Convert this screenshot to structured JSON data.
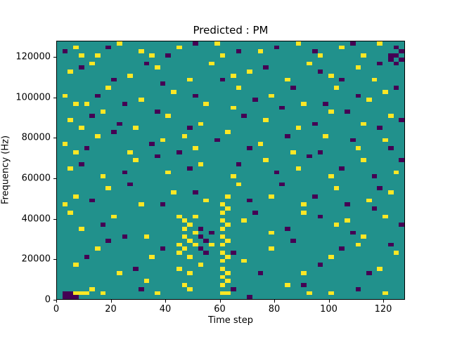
{
  "figure": {
    "background": "#ffffff"
  },
  "chart_data": {
    "type": "heatmap",
    "title": "Predicted : PM",
    "xlabel": "Time step",
    "ylabel": "Frequency (Hz)",
    "xlim": [
      0,
      128
    ],
    "ylim_hz": [
      0,
      128000
    ],
    "x_ticks": [
      0,
      20,
      40,
      60,
      80,
      100,
      120
    ],
    "y_ticks": [
      0,
      20000,
      40000,
      60000,
      80000,
      100000,
      120000
    ],
    "grid": false,
    "legend": "none",
    "colors": {
      "background_value": "#21918c",
      "high_value": "#fde725",
      "low_value": "#440154"
    },
    "cell_size": {
      "x_steps": 2,
      "y_khz": 2
    },
    "note": "Sparse ternary heatmap: teal = mid value everywhere except listed cells. Cells given as [time_step, frequency_kHz] of lower-left corner, estimated from pixels.",
    "yellow_cells": [
      [
        60,
        6
      ],
      [
        60,
        10
      ],
      [
        60,
        14
      ],
      [
        60,
        18
      ],
      [
        60,
        22
      ],
      [
        60,
        26
      ],
      [
        60,
        30
      ],
      [
        60,
        34
      ],
      [
        60,
        38
      ],
      [
        60,
        42
      ],
      [
        62,
        2
      ],
      [
        62,
        12
      ],
      [
        62,
        20
      ],
      [
        62,
        28
      ],
      [
        62,
        36
      ],
      [
        62,
        44
      ],
      [
        44,
        22
      ],
      [
        44,
        26
      ],
      [
        44,
        40
      ],
      [
        46,
        24
      ],
      [
        46,
        30
      ],
      [
        46,
        34
      ],
      [
        46,
        38
      ],
      [
        48,
        20
      ],
      [
        48,
        28
      ],
      [
        48,
        36
      ],
      [
        50,
        26
      ],
      [
        50,
        32
      ],
      [
        50,
        40
      ],
      [
        6,
        124
      ],
      [
        8,
        120
      ],
      [
        14,
        120
      ],
      [
        22,
        126
      ],
      [
        30,
        122
      ],
      [
        34,
        120
      ],
      [
        44,
        124
      ],
      [
        58,
        126
      ],
      [
        60,
        120
      ],
      [
        74,
        122
      ],
      [
        88,
        126
      ],
      [
        96,
        120
      ],
      [
        104,
        124
      ],
      [
        112,
        120
      ],
      [
        118,
        126
      ],
      [
        4,
        112
      ],
      [
        12,
        116
      ],
      [
        26,
        110
      ],
      [
        36,
        114
      ],
      [
        48,
        108
      ],
      [
        56,
        116
      ],
      [
        64,
        110
      ],
      [
        70,
        112
      ],
      [
        84,
        108
      ],
      [
        92,
        116
      ],
      [
        100,
        110
      ],
      [
        110,
        114
      ],
      [
        116,
        108
      ],
      [
        2,
        100
      ],
      [
        6,
        96
      ],
      [
        10,
        96
      ],
      [
        18,
        104
      ],
      [
        30,
        98
      ],
      [
        42,
        102
      ],
      [
        54,
        96
      ],
      [
        66,
        104
      ],
      [
        78,
        100
      ],
      [
        90,
        96
      ],
      [
        102,
        104
      ],
      [
        114,
        98
      ],
      [
        120,
        102
      ],
      [
        4,
        88
      ],
      [
        8,
        84
      ],
      [
        16,
        92
      ],
      [
        28,
        84
      ],
      [
        40,
        90
      ],
      [
        52,
        86
      ],
      [
        64,
        94
      ],
      [
        76,
        88
      ],
      [
        88,
        84
      ],
      [
        100,
        92
      ],
      [
        112,
        86
      ],
      [
        122,
        90
      ],
      [
        2,
        76
      ],
      [
        6,
        72
      ],
      [
        14,
        80
      ],
      [
        26,
        72
      ],
      [
        38,
        78
      ],
      [
        46,
        80
      ],
      [
        50,
        74
      ],
      [
        62,
        82
      ],
      [
        74,
        76
      ],
      [
        86,
        72
      ],
      [
        98,
        80
      ],
      [
        110,
        74
      ],
      [
        120,
        78
      ],
      [
        4,
        64
      ],
      [
        16,
        60
      ],
      [
        28,
        68
      ],
      [
        40,
        62
      ],
      [
        52,
        66
      ],
      [
        64,
        60
      ],
      [
        76,
        68
      ],
      [
        88,
        64
      ],
      [
        100,
        60
      ],
      [
        112,
        68
      ],
      [
        124,
        62
      ],
      [
        2,
        46
      ],
      [
        6,
        50
      ],
      [
        18,
        54
      ],
      [
        30,
        46
      ],
      [
        42,
        52
      ],
      [
        54,
        48
      ],
      [
        60,
        46
      ],
      [
        62,
        50
      ],
      [
        66,
        56
      ],
      [
        78,
        50
      ],
      [
        90,
        46
      ],
      [
        102,
        54
      ],
      [
        114,
        48
      ],
      [
        122,
        52
      ],
      [
        4,
        42
      ],
      [
        8,
        34
      ],
      [
        20,
        40
      ],
      [
        32,
        30
      ],
      [
        68,
        38
      ],
      [
        78,
        32
      ],
      [
        90,
        42
      ],
      [
        102,
        36
      ],
      [
        106,
        38
      ],
      [
        112,
        30
      ],
      [
        120,
        40
      ],
      [
        6,
        16
      ],
      [
        14,
        24
      ],
      [
        22,
        12
      ],
      [
        34,
        20
      ],
      [
        44,
        14
      ],
      [
        48,
        12
      ],
      [
        52,
        16
      ],
      [
        56,
        26
      ],
      [
        68,
        18
      ],
      [
        78,
        24
      ],
      [
        90,
        12
      ],
      [
        100,
        20
      ],
      [
        110,
        26
      ],
      [
        118,
        14
      ],
      [
        124,
        22
      ],
      [
        6,
        2
      ],
      [
        8,
        2
      ],
      [
        10,
        2
      ],
      [
        12,
        4
      ],
      [
        16,
        2
      ],
      [
        32,
        8
      ],
      [
        36,
        2
      ],
      [
        46,
        6
      ],
      [
        48,
        4
      ],
      [
        60,
        2
      ],
      [
        62,
        8
      ],
      [
        84,
        6
      ],
      [
        92,
        2
      ],
      [
        100,
        2
      ],
      [
        120,
        2
      ]
    ],
    "purple_cells": [
      [
        2,
        0
      ],
      [
        4,
        0
      ],
      [
        2,
        2
      ],
      [
        4,
        2
      ],
      [
        6,
        0
      ],
      [
        30,
        4
      ],
      [
        64,
        4
      ],
      [
        70,
        0
      ],
      [
        90,
        6
      ],
      [
        110,
        4
      ],
      [
        10,
        20
      ],
      [
        18,
        28
      ],
      [
        28,
        14
      ],
      [
        38,
        24
      ],
      [
        64,
        22
      ],
      [
        74,
        12
      ],
      [
        86,
        28
      ],
      [
        96,
        16
      ],
      [
        104,
        24
      ],
      [
        114,
        12
      ],
      [
        122,
        26
      ],
      [
        16,
        36
      ],
      [
        24,
        30
      ],
      [
        56,
        32
      ],
      [
        72,
        42
      ],
      [
        84,
        34
      ],
      [
        96,
        40
      ],
      [
        108,
        32
      ],
      [
        116,
        44
      ],
      [
        126,
        36
      ],
      [
        52,
        24
      ],
      [
        52,
        30
      ],
      [
        52,
        34
      ],
      [
        54,
        22
      ],
      [
        54,
        28
      ],
      [
        12,
        48
      ],
      [
        26,
        56
      ],
      [
        38,
        46
      ],
      [
        50,
        52
      ],
      [
        70,
        48
      ],
      [
        82,
        56
      ],
      [
        94,
        50
      ],
      [
        106,
        46
      ],
      [
        118,
        54
      ],
      [
        8,
        66
      ],
      [
        24,
        62
      ],
      [
        36,
        70
      ],
      [
        48,
        64
      ],
      [
        66,
        66
      ],
      [
        80,
        62
      ],
      [
        92,
        70
      ],
      [
        104,
        64
      ],
      [
        116,
        60
      ],
      [
        126,
        68
      ],
      [
        10,
        74
      ],
      [
        20,
        82
      ],
      [
        34,
        76
      ],
      [
        44,
        72
      ],
      [
        58,
        78
      ],
      [
        70,
        74
      ],
      [
        84,
        80
      ],
      [
        96,
        72
      ],
      [
        108,
        78
      ],
      [
        122,
        74
      ],
      [
        12,
        90
      ],
      [
        22,
        86
      ],
      [
        36,
        92
      ],
      [
        48,
        84
      ],
      [
        68,
        90
      ],
      [
        82,
        94
      ],
      [
        94,
        86
      ],
      [
        106,
        92
      ],
      [
        118,
        84
      ],
      [
        126,
        88
      ],
      [
        14,
        100
      ],
      [
        24,
        96
      ],
      [
        38,
        106
      ],
      [
        50,
        100
      ],
      [
        72,
        98
      ],
      [
        86,
        104
      ],
      [
        98,
        96
      ],
      [
        110,
        100
      ],
      [
        124,
        104
      ],
      [
        8,
        114
      ],
      [
        20,
        108
      ],
      [
        32,
        116
      ],
      [
        60,
        108
      ],
      [
        76,
        114
      ],
      [
        96,
        112
      ],
      [
        104,
        108
      ],
      [
        118,
        116
      ],
      [
        2,
        122
      ],
      [
        18,
        124
      ],
      [
        40,
        120
      ],
      [
        50,
        126
      ],
      [
        66,
        122
      ],
      [
        80,
        124
      ],
      [
        94,
        122
      ],
      [
        108,
        126
      ],
      [
        122,
        118
      ],
      [
        122,
        120
      ],
      [
        124,
        116
      ],
      [
        124,
        120
      ],
      [
        124,
        124
      ],
      [
        126,
        118
      ],
      [
        126,
        122
      ]
    ]
  }
}
